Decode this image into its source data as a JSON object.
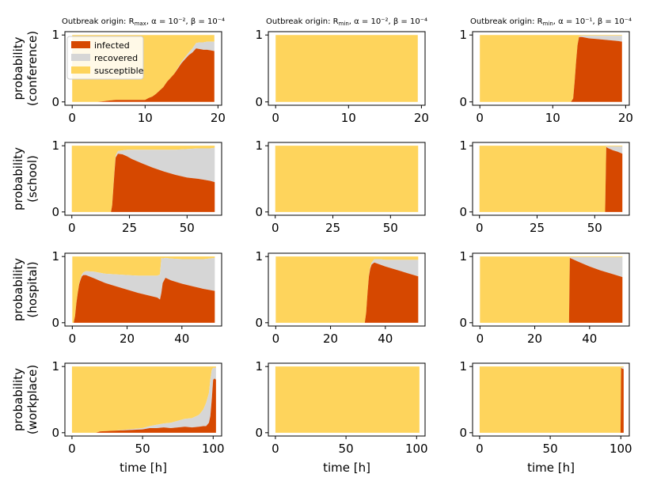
{
  "colors": {
    "infected": "#d64800",
    "recovered": "#d6d6d6",
    "susceptible": "#fed45c"
  },
  "chart_data": {
    "type": "area",
    "stacking": "stacked, normalized to probability 1 (infected bottom, recovered middle, susceptible top)",
    "legend": {
      "placement": "top-left of first panel",
      "entries": [
        "infected",
        "recovered",
        "susceptible"
      ]
    },
    "columns": [
      {
        "title_prefix": "Outbreak origin: R",
        "title_sub": "max",
        "title_suffix": ", α = 10⁻², β = 10⁻⁴"
      },
      {
        "title_prefix": "Outbreak origin: R",
        "title_sub": "min",
        "title_suffix": ", α = 10⁻², β = 10⁻⁴"
      },
      {
        "title_prefix": "Outbreak origin: R",
        "title_sub": "min",
        "title_suffix": ", α = 10⁻¹, β = 10⁻⁴"
      }
    ],
    "rows": [
      {
        "ylabel_1": "probability",
        "ylabel_2": "(conference)",
        "xlim": [
          -1,
          20.5
        ],
        "xticks": [
          0,
          10,
          20
        ]
      },
      {
        "ylabel_1": "probability",
        "ylabel_2": "(school)",
        "xlim": [
          -3,
          65
        ],
        "xticks": [
          0,
          25,
          50
        ]
      },
      {
        "ylabel_1": "probability",
        "ylabel_2": "(hospital)",
        "xlim": [
          -2.7,
          54.5
        ],
        "xticks": [
          0,
          20,
          40
        ]
      },
      {
        "ylabel_1": "probability",
        "ylabel_2": "(workplace)",
        "xlim": [
          -5,
          106
        ],
        "xticks": [
          0,
          50,
          100
        ]
      }
    ],
    "ylim": [
      -0.05,
      1.05
    ],
    "yticks": [
      0,
      1
    ],
    "xlabel": "time [h]",
    "grid": false,
    "panels": [
      {
        "row": 0,
        "col": 0,
        "x": [
          0,
          3.5,
          5,
          6,
          7.5,
          9,
          10,
          10.5,
          11,
          11.5,
          12,
          12.5,
          13,
          13.5,
          14,
          14.5,
          15,
          15.5,
          16,
          16.5,
          17,
          17.5,
          18,
          18.5,
          19,
          19.5
        ],
        "infected": [
          0,
          0,
          0.02,
          0.03,
          0.03,
          0.03,
          0.03,
          0.06,
          0.08,
          0.12,
          0.17,
          0.22,
          0.3,
          0.36,
          0.42,
          0.5,
          0.58,
          0.64,
          0.7,
          0.74,
          0.8,
          0.79,
          0.78,
          0.78,
          0.77,
          0.76
        ],
        "recovered": [
          0,
          0,
          0,
          0,
          0,
          0,
          0,
          0,
          0,
          0,
          0,
          0,
          0,
          0,
          0,
          0.01,
          0.02,
          0.03,
          0.04,
          0.06,
          0.08,
          0.1,
          0.11,
          0.12,
          0.13,
          0.14
        ]
      },
      {
        "row": 0,
        "col": 1,
        "x": [
          0,
          19.5
        ],
        "infected": [
          0,
          0
        ],
        "recovered": [
          0,
          0
        ]
      },
      {
        "row": 0,
        "col": 2,
        "x": [
          0,
          12.5,
          12.8,
          13.0,
          13.2,
          13.4,
          13.6,
          14,
          15,
          16,
          17,
          18,
          19,
          19.5
        ],
        "infected": [
          0,
          0,
          0.05,
          0.3,
          0.6,
          0.85,
          0.97,
          0.97,
          0.95,
          0.94,
          0.93,
          0.92,
          0.91,
          0.9
        ],
        "recovered": [
          0,
          0,
          0,
          0,
          0,
          0,
          0.01,
          0.02,
          0.04,
          0.05,
          0.06,
          0.07,
          0.08,
          0.09
        ]
      },
      {
        "row": 1,
        "col": 0,
        "x": [
          0,
          17,
          17.5,
          18,
          18.5,
          19,
          20,
          22,
          24,
          26,
          30,
          35,
          40,
          45,
          50,
          55,
          60,
          62
        ],
        "infected": [
          0,
          0,
          0.1,
          0.35,
          0.6,
          0.82,
          0.88,
          0.87,
          0.84,
          0.8,
          0.74,
          0.67,
          0.61,
          0.56,
          0.52,
          0.5,
          0.47,
          0.45
        ],
        "recovered": [
          0,
          0,
          0,
          0.01,
          0.02,
          0.03,
          0.04,
          0.06,
          0.1,
          0.14,
          0.2,
          0.27,
          0.33,
          0.38,
          0.43,
          0.46,
          0.49,
          0.52
        ]
      },
      {
        "row": 1,
        "col": 1,
        "x": [
          0,
          62
        ],
        "infected": [
          0,
          0
        ],
        "recovered": [
          0,
          0
        ]
      },
      {
        "row": 1,
        "col": 2,
        "x": [
          0,
          54.5,
          55,
          56,
          58,
          60,
          62
        ],
        "infected": [
          0,
          0,
          0.98,
          0.96,
          0.93,
          0.91,
          0.88
        ],
        "recovered": [
          0,
          0,
          0.01,
          0.03,
          0.06,
          0.08,
          0.11
        ]
      },
      {
        "row": 2,
        "col": 0,
        "x": [
          0,
          0.5,
          1.0,
          1.5,
          2,
          2.5,
          3,
          3.5,
          4,
          5,
          8,
          12,
          16,
          20,
          24,
          28,
          31,
          32,
          32.5,
          33,
          34,
          36,
          40,
          44,
          48,
          52
        ],
        "infected": [
          0,
          0,
          0.1,
          0.3,
          0.45,
          0.58,
          0.65,
          0.7,
          0.72,
          0.72,
          0.67,
          0.6,
          0.55,
          0.5,
          0.45,
          0.41,
          0.38,
          0.35,
          0.45,
          0.6,
          0.68,
          0.64,
          0.59,
          0.55,
          0.51,
          0.48
        ],
        "recovered": [
          0,
          0,
          0,
          0,
          0,
          0.01,
          0.02,
          0.03,
          0.04,
          0.06,
          0.1,
          0.14,
          0.18,
          0.22,
          0.26,
          0.3,
          0.33,
          0.38,
          0.53,
          0.37,
          0.3,
          0.33,
          0.37,
          0.41,
          0.45,
          0.5
        ]
      },
      {
        "row": 2,
        "col": 1,
        "x": [
          0,
          32.5,
          33,
          33.5,
          34,
          34.5,
          35,
          36,
          38,
          40,
          44,
          48,
          52
        ],
        "infected": [
          0,
          0,
          0.15,
          0.45,
          0.7,
          0.82,
          0.88,
          0.91,
          0.88,
          0.85,
          0.8,
          0.75,
          0.7
        ],
        "recovered": [
          0,
          0,
          0,
          0,
          0.01,
          0.02,
          0.03,
          0.05,
          0.08,
          0.1,
          0.15,
          0.2,
          0.25
        ]
      },
      {
        "row": 2,
        "col": 2,
        "x": [
          0,
          32.5,
          32.8,
          36,
          40,
          44,
          48,
          52
        ],
        "infected": [
          0,
          0,
          0.98,
          0.92,
          0.85,
          0.79,
          0.74,
          0.69
        ],
        "recovered": [
          0,
          0,
          0.01,
          0.07,
          0.14,
          0.2,
          0.25,
          0.3
        ]
      },
      {
        "row": 3,
        "col": 0,
        "x": [
          0,
          17,
          20,
          30,
          40,
          50,
          55,
          60,
          65,
          70,
          75,
          80,
          85,
          90,
          93,
          95,
          97,
          98,
          99,
          100,
          101,
          102
        ],
        "infected": [
          0,
          0,
          0.02,
          0.03,
          0.04,
          0.05,
          0.07,
          0.07,
          0.08,
          0.07,
          0.08,
          0.09,
          0.08,
          0.09,
          0.1,
          0.1,
          0.15,
          0.25,
          0.5,
          0.8,
          0.82,
          0.8
        ],
        "recovered": [
          0,
          0,
          0,
          0,
          0.01,
          0.02,
          0.03,
          0.05,
          0.06,
          0.08,
          0.1,
          0.12,
          0.14,
          0.18,
          0.25,
          0.35,
          0.45,
          0.55,
          0.45,
          0.18,
          0.16,
          0.18
        ]
      },
      {
        "row": 3,
        "col": 1,
        "x": [
          0,
          102
        ],
        "infected": [
          0,
          0
        ],
        "recovered": [
          0,
          0
        ]
      },
      {
        "row": 3,
        "col": 2,
        "x": [
          0,
          99.8,
          100.2,
          101,
          102
        ],
        "infected": [
          0,
          0,
          0.98,
          0.97,
          0.96
        ],
        "recovered": [
          0,
          0,
          0.01,
          0.02,
          0.03
        ]
      }
    ]
  }
}
